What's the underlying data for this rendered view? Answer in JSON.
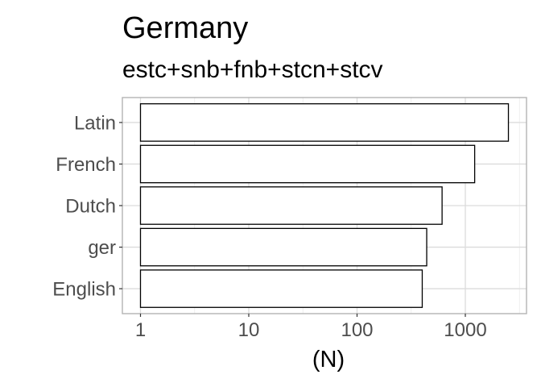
{
  "chart_data": {
    "type": "bar",
    "orientation": "horizontal",
    "title": "Germany",
    "subtitle": "estc+snb+fnb+stcn+stcv",
    "xlabel": "(N)",
    "ylabel": "",
    "x_scale": "log10",
    "xlim": [
      1,
      3500
    ],
    "x_ticks": [
      1,
      10,
      100,
      1000
    ],
    "x_tick_labels": [
      "1",
      "10",
      "100",
      "1000"
    ],
    "categories": [
      "Latin",
      "French",
      "Dutch",
      "ger",
      "English"
    ],
    "values": [
      2500,
      1220,
      610,
      440,
      400
    ],
    "bar_fill": "#ffffff",
    "bar_stroke": "#000000",
    "grid": true,
    "legend": "none"
  }
}
